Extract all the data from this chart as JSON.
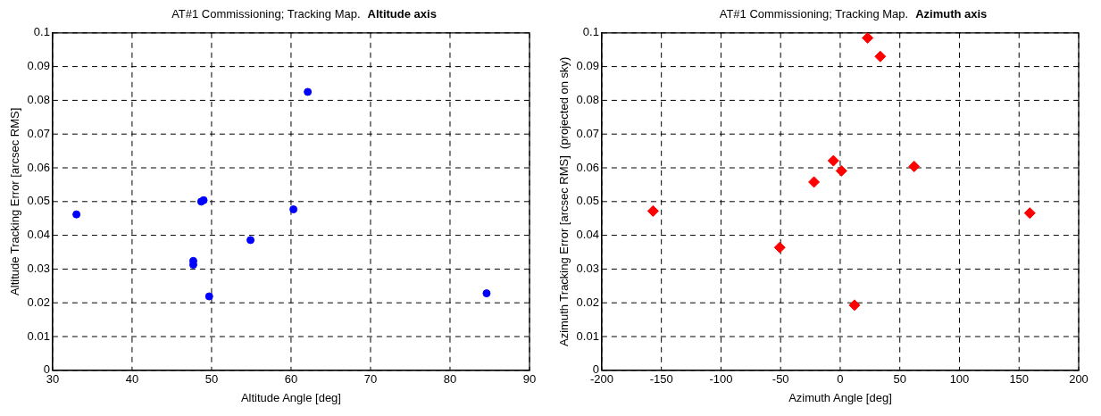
{
  "chart_data": [
    {
      "type": "scatter",
      "title": "AT#1 Commissioning; Tracking Map.",
      "subtitle": "Altitude axis",
      "xlabel": "Altitude Angle [deg]",
      "ylabel": "Altitude Tracking Error [arcsec RMS]",
      "color": "#0000ff",
      "marker": "circle",
      "grid": true,
      "legend": false,
      "x": [
        33.0,
        47.7,
        47.7,
        48.7,
        49.0,
        49.7,
        54.9,
        60.3,
        62.1,
        84.6
      ],
      "values": [
        0.0462,
        0.0324,
        0.0313,
        0.05,
        0.0504,
        0.0219,
        0.0386,
        0.0477,
        0.0825,
        0.0228
      ],
      "xlim": [
        30,
        90
      ],
      "xticks": [
        30,
        40,
        50,
        60,
        70,
        80,
        90
      ],
      "ylim": [
        0,
        0.1
      ],
      "yticks": [
        0,
        0.01,
        0.02,
        0.03,
        0.04,
        0.05,
        0.06,
        0.07,
        0.08,
        0.09,
        0.1
      ]
    },
    {
      "type": "scatter",
      "title": "AT#1 Commissioning; Tracking Map.",
      "subtitle": "Azimuth axis",
      "xlabel": "Azimuth Angle [deg]",
      "ylabel": "Azimuth Tracking Error [arcsec RMS]  (projected on sky)",
      "color": "#ff0000",
      "marker": "diamond",
      "grid": true,
      "legend": false,
      "x": [
        -157,
        -50.7,
        -22,
        -5.7,
        1,
        12,
        23,
        33.6,
        62,
        159
      ],
      "values": [
        0.0472,
        0.0364,
        0.0558,
        0.0621,
        0.0591,
        0.0193,
        0.0985,
        0.093,
        0.0604,
        0.0466
      ],
      "xlim": [
        -200,
        200
      ],
      "xticks": [
        -200,
        -150,
        -100,
        -50,
        0,
        50,
        100,
        150,
        200
      ],
      "ylim": [
        0,
        0.1
      ],
      "yticks": [
        0,
        0.01,
        0.02,
        0.03,
        0.04,
        0.05,
        0.06,
        0.07,
        0.08,
        0.09,
        0.1
      ]
    }
  ]
}
